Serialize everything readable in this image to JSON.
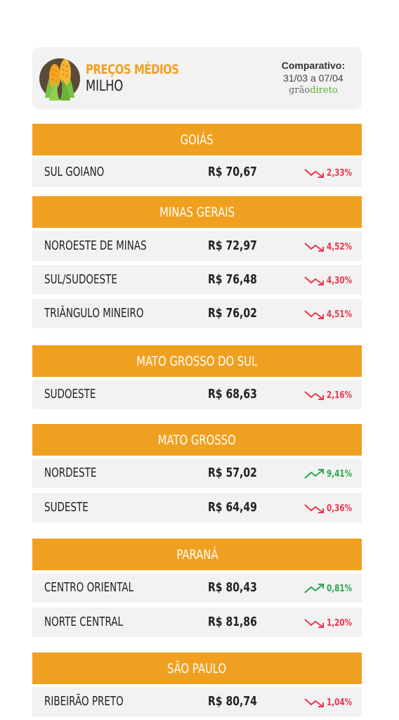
{
  "header": {
    "title": "PREÇOS MÉDIOS",
    "subtitle": "MILHO",
    "comparison_label": "Comparativo:",
    "comparison_range": "31/03 a 07/04",
    "brand_part1": "grão",
    "brand_part2": "direto",
    "icon": "corn-icon"
  },
  "colors": {
    "accent": "#f0a020",
    "row_background": "#f2f2f2",
    "down": "#e8364e",
    "up": "#29a84b",
    "brand_green": "#55b33a"
  },
  "sections": [
    {
      "title": "GOIÁS",
      "rows": [
        {
          "region": "SUL GOIANO",
          "price": "R$ 70,67",
          "change": "2,33%",
          "direction": "down"
        }
      ]
    },
    {
      "title": "MINAS GERAIS",
      "rows": [
        {
          "region": "NOROESTE DE MINAS",
          "price": "R$ 72,97",
          "change": "4,52%",
          "direction": "down"
        },
        {
          "region": "SUL/SUDOESTE",
          "price": "R$ 76,48",
          "change": "4,30%",
          "direction": "down"
        },
        {
          "region": "TRIÂNGULO MINEIRO",
          "price": "R$ 76,02",
          "change": "4,51%",
          "direction": "down"
        }
      ]
    },
    {
      "title": "MATO GROSSO DO SUL",
      "rows": [
        {
          "region": "SUDOESTE",
          "price": "R$ 68,63",
          "change": "2,16%",
          "direction": "down"
        }
      ]
    },
    {
      "title": "MATO GROSSO",
      "rows": [
        {
          "region": "NORDESTE",
          "price": "R$ 57,02",
          "change": "9,41%",
          "direction": "up"
        },
        {
          "region": "SUDESTE",
          "price": "R$ 64,49",
          "change": "0,36%",
          "direction": "down"
        }
      ]
    },
    {
      "title": "PARANÁ",
      "rows": [
        {
          "region": "CENTRO ORIENTAL",
          "price": "R$ 80,43",
          "change": "0,81%",
          "direction": "up"
        },
        {
          "region": "NORTE CENTRAL",
          "price": "R$ 81,86",
          "change": "1,20%",
          "direction": "down"
        }
      ]
    },
    {
      "title": "SÃO PAULO",
      "rows": [
        {
          "region": "RIBEIRÃO PRETO",
          "price": "R$ 80,74",
          "change": "1,04%",
          "direction": "down"
        }
      ]
    }
  ]
}
